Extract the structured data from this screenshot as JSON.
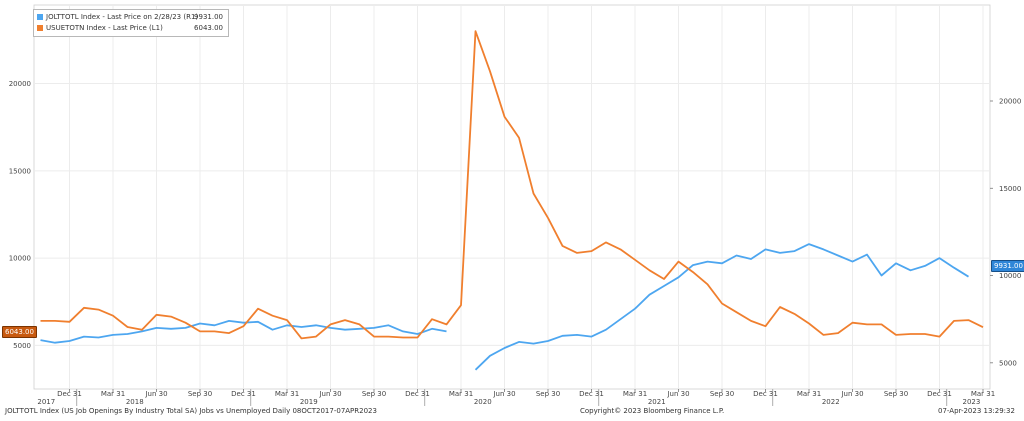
{
  "legend": [
    {
      "name": "JOLTTOTL Index - Last Price on 2/28/23 (R1)",
      "value": "9931.00",
      "color": "#4da6f0"
    },
    {
      "name": "USUETOTN Index - Last Price (L1)",
      "value": "6043.00",
      "color": "#f07f2e"
    }
  ],
  "footer": {
    "left": "JOLTTOTL Index (US Job Openings By Industry Total SA) Jobs vs Unemployed  Daily 08OCT2017-07APR2023",
    "center": "Copyright© 2023 Bloomberg Finance L.P.",
    "right": "07-Apr-2023 13:29:32"
  },
  "tags": {
    "left": "6043.00",
    "right": "9931.00"
  },
  "chart_data": {
    "type": "line",
    "left_axis": {
      "ticks": [
        "5000",
        "10000",
        "15000",
        "20000"
      ],
      "range": [
        2500,
        24500
      ]
    },
    "right_axis": {
      "ticks": [
        "5000",
        "10000",
        "15000",
        "20000"
      ],
      "range": [
        3500,
        25500
      ]
    },
    "x_ticks": [
      "Dec 31",
      "Mar 31",
      "Jun 30",
      "Sep 30",
      "Dec 31",
      "Mar 31",
      "Jun 30",
      "Sep 30",
      "Dec 31",
      "Mar 31",
      "Jun 30",
      "Sep 30",
      "Dec 31",
      "Mar 31",
      "Jun 30",
      "Sep 30",
      "Dec 31",
      "Mar 31",
      "Jun 30",
      "Sep 30",
      "Dec 31",
      "Mar 31"
    ],
    "years": [
      "2017",
      "2018",
      "2019",
      "2020",
      "2021",
      "2022",
      "2023"
    ],
    "x": [
      "2017-10-31",
      "2017-11-30",
      "2017-12-31",
      "2018-01-31",
      "2018-02-28",
      "2018-03-31",
      "2018-04-30",
      "2018-05-31",
      "2018-06-30",
      "2018-07-31",
      "2018-08-31",
      "2018-09-30",
      "2018-10-31",
      "2018-11-30",
      "2018-12-31",
      "2019-01-31",
      "2019-02-28",
      "2019-03-31",
      "2019-04-30",
      "2019-05-31",
      "2019-06-30",
      "2019-07-31",
      "2019-08-31",
      "2019-09-30",
      "2019-10-31",
      "2019-11-30",
      "2019-12-31",
      "2020-01-31",
      "2020-02-29",
      "2020-03-31",
      "2020-04-30",
      "2020-05-31",
      "2020-06-30",
      "2020-07-31",
      "2020-08-31",
      "2020-09-30",
      "2020-10-31",
      "2020-11-30",
      "2020-12-31",
      "2021-01-31",
      "2021-02-28",
      "2021-03-31",
      "2021-04-30",
      "2021-05-31",
      "2021-06-30",
      "2021-07-31",
      "2021-08-31",
      "2021-09-30",
      "2021-10-31",
      "2021-11-30",
      "2021-12-31",
      "2022-01-31",
      "2022-02-28",
      "2022-03-31",
      "2022-04-30",
      "2022-05-31",
      "2022-06-30",
      "2022-07-31",
      "2022-08-31",
      "2022-09-30",
      "2022-10-31",
      "2022-11-30",
      "2022-12-31",
      "2023-01-31",
      "2023-02-28",
      "2023-03-31"
    ],
    "series": [
      {
        "name": "JOLTTOTL Index - Last Price on 2/28/23 (R1)",
        "axis": "right",
        "values": [
          6300,
          6150,
          6250,
          6500,
          6450,
          6600,
          6650,
          6800,
          7000,
          6950,
          7000,
          7250,
          7150,
          7400,
          7300,
          7350,
          6900,
          7150,
          7050,
          7150,
          7000,
          6900,
          6950,
          7000,
          7150,
          6800,
          6650,
          6950,
          6800,
          null,
          4600,
          5400,
          5850,
          6200,
          6100,
          6250,
          6550,
          6600,
          6500,
          6900,
          7500,
          8100,
          8900,
          9400,
          9900,
          10600,
          10800,
          10700,
          11150,
          10950,
          11500,
          11300,
          11400,
          11800,
          11500,
          11150,
          10800,
          11200,
          10000,
          10700,
          10300,
          10550,
          11000,
          10450,
          9931,
          null
        ]
      },
      {
        "name": "USUETOTN Index - Last Price (L1)",
        "axis": "left",
        "values": [
          6400,
          6400,
          6350,
          7150,
          7050,
          6700,
          6050,
          5900,
          6750,
          6650,
          6300,
          5800,
          5800,
          5700,
          6100,
          7100,
          6700,
          6450,
          5400,
          5500,
          6200,
          6450,
          6200,
          5500,
          5500,
          5450,
          5450,
          6500,
          6200,
          7300,
          23000,
          20700,
          18100,
          16900,
          13700,
          12300,
          10700,
          10300,
          10400,
          10900,
          10500,
          9900,
          9300,
          8800,
          9800,
          9200,
          8500,
          7400,
          6900,
          6400,
          6100,
          7200,
          6800,
          6250,
          5600,
          5700,
          6300,
          6200,
          6200,
          5600,
          5650,
          5650,
          5500,
          6400,
          6450,
          6043
        ]
      }
    ]
  }
}
